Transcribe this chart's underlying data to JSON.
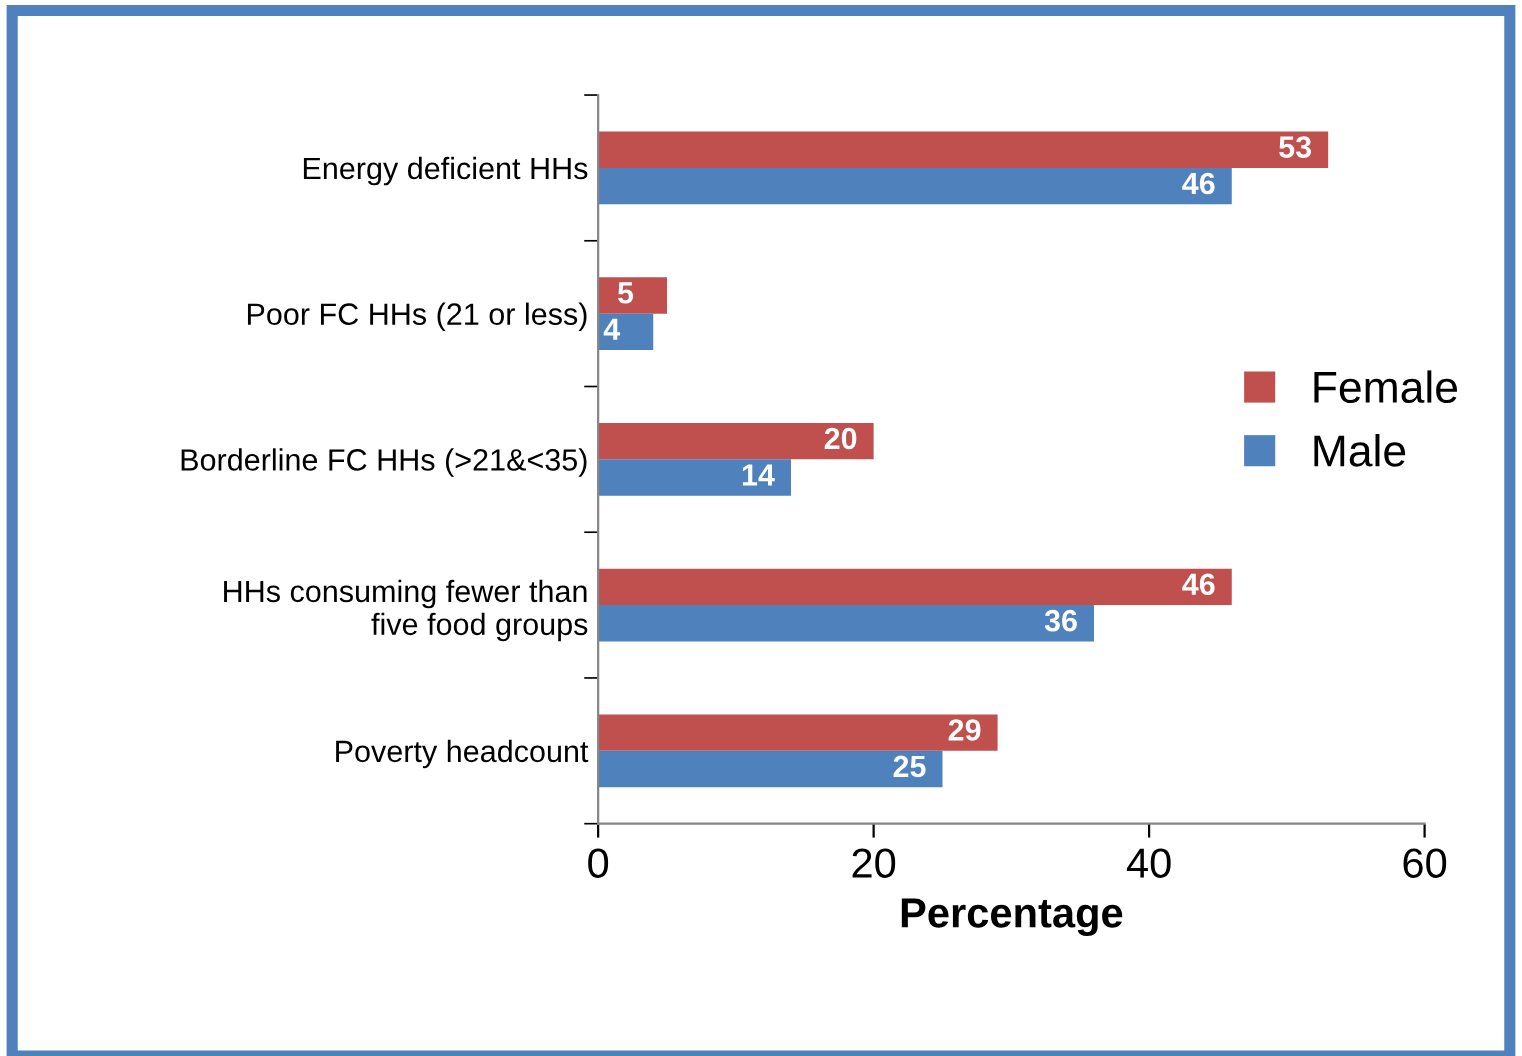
{
  "chart_data": {
    "type": "bar",
    "orientation": "horizontal",
    "xlabel": "Percentage",
    "categories": [
      "Energy deficient HHs",
      "Poor FC HHs (21 or less)",
      "Borderline FC HHs (>21&<35)",
      "HHs consuming fewer than\nfive food groups",
      "Poverty headcount"
    ],
    "series": [
      {
        "name": "Female",
        "color": "#c0504d",
        "values": [
          53,
          5,
          20,
          46,
          29
        ]
      },
      {
        "name": "Male",
        "color": "#4f81bd",
        "values": [
          46,
          4,
          14,
          36,
          25
        ]
      }
    ],
    "xlim": [
      0,
      60
    ],
    "xticks": [
      0,
      20,
      40,
      60
    ],
    "data_labels": true,
    "legend": "right",
    "grid": false
  }
}
